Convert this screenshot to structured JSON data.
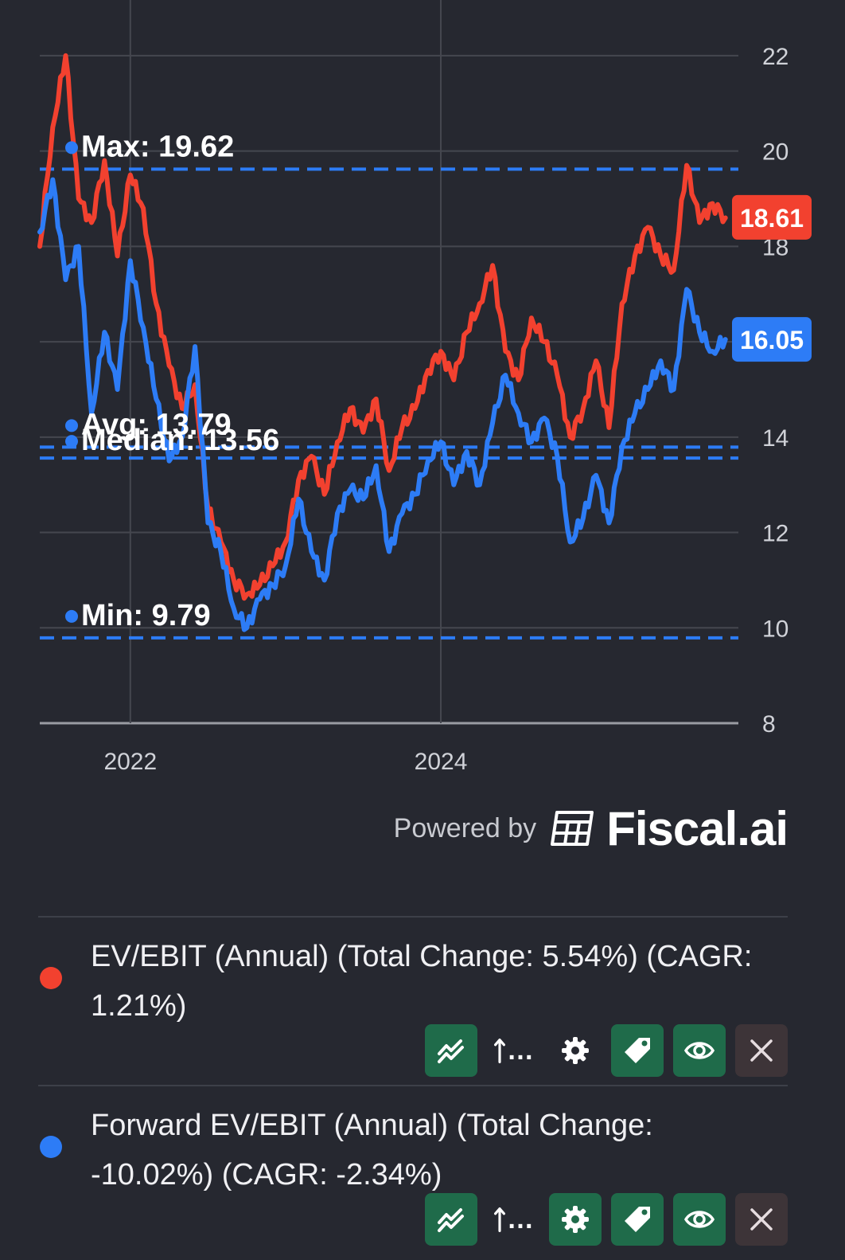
{
  "chart_data": {
    "type": "line",
    "x_ticks": [
      "2022",
      "2024"
    ],
    "y_ticks": [
      "8",
      "10",
      "12",
      "14",
      "16",
      "18",
      "20",
      "22"
    ],
    "ylim": [
      8,
      22.5
    ],
    "xlim": [
      "2021-06",
      "2025-12"
    ],
    "grid": true,
    "series": [
      {
        "name": "EV/EBIT (Annual) (Total Change: 5.54%) (CAGR: 1.21%)",
        "color": "#f2412f",
        "current_value": "18.61",
        "points": [
          [
            "2021-06",
            18.0
          ],
          [
            "2021-07",
            20.5
          ],
          [
            "2021-08",
            22.0
          ],
          [
            "2021-09",
            19.0
          ],
          [
            "2021-10",
            18.5
          ],
          [
            "2021-11",
            19.8
          ],
          [
            "2021-12",
            17.8
          ],
          [
            "2022-01",
            19.5
          ],
          [
            "2022-02",
            18.8
          ],
          [
            "2022-03",
            16.8
          ],
          [
            "2022-04",
            15.5
          ],
          [
            "2022-05",
            14.6
          ],
          [
            "2022-06",
            15.1
          ],
          [
            "2022-07",
            12.5
          ],
          [
            "2022-08",
            11.8
          ],
          [
            "2022-09",
            11.0
          ],
          [
            "2022-10",
            10.7
          ],
          [
            "2022-11",
            10.9
          ],
          [
            "2022-12",
            11.3
          ],
          [
            "2023-01",
            11.8
          ],
          [
            "2023-02",
            13.1
          ],
          [
            "2023-03",
            13.6
          ],
          [
            "2023-04",
            12.8
          ],
          [
            "2023-05",
            13.9
          ],
          [
            "2023-06",
            14.6
          ],
          [
            "2023-07",
            14.1
          ],
          [
            "2023-08",
            14.8
          ],
          [
            "2023-09",
            13.3
          ],
          [
            "2023-10",
            14.2
          ],
          [
            "2023-11",
            14.6
          ],
          [
            "2023-12",
            15.4
          ],
          [
            "2024-01",
            15.8
          ],
          [
            "2024-02",
            15.2
          ],
          [
            "2024-03",
            16.2
          ],
          [
            "2024-04",
            16.8
          ],
          [
            "2024-05",
            17.6
          ],
          [
            "2024-06",
            15.8
          ],
          [
            "2024-07",
            15.2
          ],
          [
            "2024-08",
            16.5
          ],
          [
            "2024-09",
            16.0
          ],
          [
            "2024-10",
            15.3
          ],
          [
            "2024-11",
            14.0
          ],
          [
            "2024-12",
            14.6
          ],
          [
            "2025-01",
            15.6
          ],
          [
            "2025-02",
            14.2
          ],
          [
            "2025-03",
            16.8
          ],
          [
            "2025-04",
            17.8
          ],
          [
            "2025-05",
            18.4
          ],
          [
            "2025-06",
            17.8
          ],
          [
            "2025-07",
            17.5
          ],
          [
            "2025-08",
            19.7
          ],
          [
            "2025-09",
            18.5
          ],
          [
            "2025-10",
            18.9
          ],
          [
            "2025-11",
            18.6
          ]
        ]
      },
      {
        "name": "Forward EV/EBIT (Annual) (Total Change: -10.02%) (CAGR: -2.34%)",
        "color": "#2d7cf6",
        "current_value": "16.05",
        "points": [
          [
            "2021-06",
            18.3
          ],
          [
            "2021-07",
            19.4
          ],
          [
            "2021-08",
            17.3
          ],
          [
            "2021-09",
            18.0
          ],
          [
            "2021-10",
            14.5
          ],
          [
            "2021-11",
            16.2
          ],
          [
            "2021-12",
            15.0
          ],
          [
            "2022-01",
            17.7
          ],
          [
            "2022-02",
            16.3
          ],
          [
            "2022-03",
            14.8
          ],
          [
            "2022-04",
            13.5
          ],
          [
            "2022-05",
            14.0
          ],
          [
            "2022-06",
            15.9
          ],
          [
            "2022-07",
            12.2
          ],
          [
            "2022-08",
            11.6
          ],
          [
            "2022-09",
            10.4
          ],
          [
            "2022-10",
            10.0
          ],
          [
            "2022-11",
            10.6
          ],
          [
            "2022-12",
            10.9
          ],
          [
            "2023-01",
            11.3
          ],
          [
            "2023-02",
            12.7
          ],
          [
            "2023-03",
            11.6
          ],
          [
            "2023-04",
            11.0
          ],
          [
            "2023-05",
            12.4
          ],
          [
            "2023-06",
            12.9
          ],
          [
            "2023-07",
            12.7
          ],
          [
            "2023-08",
            13.4
          ],
          [
            "2023-09",
            11.6
          ],
          [
            "2023-10",
            12.4
          ],
          [
            "2023-11",
            12.8
          ],
          [
            "2023-12",
            13.5
          ],
          [
            "2024-01",
            13.9
          ],
          [
            "2024-02",
            13.0
          ],
          [
            "2024-03",
            13.7
          ],
          [
            "2024-04",
            13.0
          ],
          [
            "2024-05",
            14.3
          ],
          [
            "2024-06",
            15.3
          ],
          [
            "2024-07",
            14.5
          ],
          [
            "2024-08",
            13.9
          ],
          [
            "2024-09",
            14.4
          ],
          [
            "2024-10",
            13.6
          ],
          [
            "2024-11",
            11.8
          ],
          [
            "2024-12",
            12.3
          ],
          [
            "2025-01",
            13.2
          ],
          [
            "2025-02",
            12.2
          ],
          [
            "2025-03",
            13.8
          ],
          [
            "2025-04",
            14.5
          ],
          [
            "2025-05",
            15.0
          ],
          [
            "2025-06",
            15.6
          ],
          [
            "2025-07",
            15.0
          ],
          [
            "2025-08",
            17.1
          ],
          [
            "2025-09",
            16.2
          ],
          [
            "2025-10",
            15.8
          ],
          [
            "2025-11",
            16.05
          ]
        ]
      }
    ],
    "reference_lines": [
      {
        "label": "Max: 19.62",
        "value": 19.62
      },
      {
        "label": "Avg: 13.79",
        "value": 13.79
      },
      {
        "label": "Median: 13.56",
        "value": 13.56
      },
      {
        "label": "Min: 9.79",
        "value": 9.79
      }
    ],
    "reference_color": "#2d7cf6"
  },
  "branding": {
    "powered_by": "Powered by",
    "brand": "Fiscal.ai",
    "brand_icon": "fiscal-logo-icon"
  },
  "legend": [
    {
      "label": "EV/EBIT (Annual) (Total Change: 5.54%) (CAGR: 1.21%)",
      "color": "#f2412f",
      "buttons": [
        {
          "icon": "trend-lines-icon",
          "style": "green"
        },
        {
          "icon": "axis-arrow-icon",
          "text": "…",
          "style": "plain"
        },
        {
          "icon": "gear-icon",
          "style": "plain"
        },
        {
          "icon": "tag-icon",
          "style": "green"
        },
        {
          "icon": "eye-icon",
          "style": "green"
        },
        {
          "icon": "close-icon",
          "style": "dark"
        }
      ]
    },
    {
      "label": "Forward EV/EBIT (Annual) (Total Change: -10.02%) (CAGR: -2.34%)",
      "color": "#2d7cf6",
      "buttons": [
        {
          "icon": "trend-lines-icon",
          "style": "green"
        },
        {
          "icon": "axis-arrow-icon",
          "text": "…",
          "style": "plain"
        },
        {
          "icon": "gear-icon",
          "style": "green"
        },
        {
          "icon": "tag-icon",
          "style": "green"
        },
        {
          "icon": "eye-icon",
          "style": "green"
        },
        {
          "icon": "close-icon",
          "style": "dark"
        }
      ]
    }
  ]
}
